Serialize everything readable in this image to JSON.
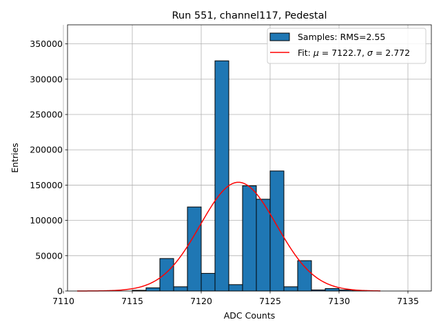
{
  "chart_data": {
    "type": "bar",
    "title": "Run 551, channel117, Pedestal",
    "xlabel": "ADC Counts",
    "ylabel": "Entries",
    "xlim": [
      7110.3,
      7136.7
    ],
    "ylim": [
      0,
      377000
    ],
    "xticks": [
      7110,
      7115,
      7120,
      7125,
      7130,
      7135
    ],
    "yticks": [
      0,
      50000,
      100000,
      150000,
      200000,
      250000,
      300000,
      350000
    ],
    "grid": true,
    "legend_position": "top-right",
    "histogram": {
      "name": "Samples: RMS=2.55",
      "color": "#1f77b4",
      "edgecolor": "#000000",
      "bins": [
        {
          "x0": 7115.0,
          "x1": 7116.0,
          "value": 1000
        },
        {
          "x0": 7116.0,
          "x1": 7117.0,
          "value": 4500
        },
        {
          "x0": 7117.0,
          "x1": 7118.0,
          "value": 46000
        },
        {
          "x0": 7118.0,
          "x1": 7119.0,
          "value": 6000
        },
        {
          "x0": 7119.0,
          "x1": 7120.0,
          "value": 119000
        },
        {
          "x0": 7120.0,
          "x1": 7121.0,
          "value": 25000
        },
        {
          "x0": 7121.0,
          "x1": 7122.0,
          "value": 326000
        },
        {
          "x0": 7122.0,
          "x1": 7123.0,
          "value": 9000
        },
        {
          "x0": 7123.0,
          "x1": 7124.0,
          "value": 149000
        },
        {
          "x0": 7124.0,
          "x1": 7125.0,
          "value": 130000
        },
        {
          "x0": 7125.0,
          "x1": 7126.0,
          "value": 170000
        },
        {
          "x0": 7126.0,
          "x1": 7127.0,
          "value": 6000
        },
        {
          "x0": 7127.0,
          "x1": 7128.0,
          "value": 43000
        },
        {
          "x0": 7128.0,
          "x1": 7129.0,
          "value": 1500
        },
        {
          "x0": 7129.0,
          "x1": 7130.0,
          "value": 3500
        },
        {
          "x0": 7130.0,
          "x1": 7131.0,
          "value": 1500
        },
        {
          "x0": 7131.0,
          "x1": 7132.0,
          "value": 300
        }
      ]
    },
    "fit": {
      "name_prefix": "Fit: ",
      "mu_label": "μ",
      "mu_value": "7122.7",
      "sigma_label": "σ",
      "sigma_value": "2.772",
      "mu": 7122.7,
      "sigma": 2.772,
      "amplitude": 154000,
      "x_range": [
        7111.0,
        7133.0
      ],
      "color": "#ff0000"
    }
  }
}
